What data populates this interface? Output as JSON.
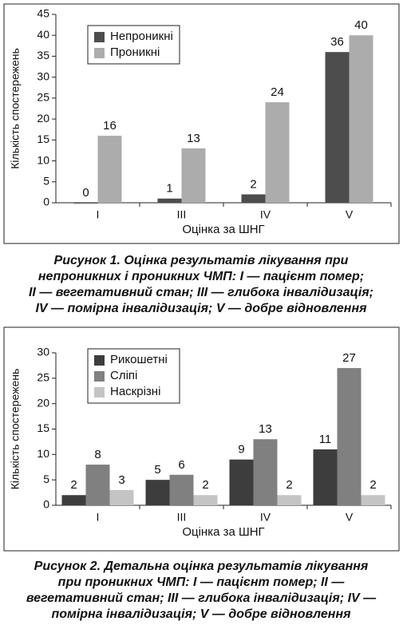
{
  "chart_data": [
    {
      "type": "bar",
      "ylabel": "Кількість спостережень",
      "xlabel": "Оцінка за ШНГ",
      "categories": [
        "I",
        "III",
        "IV",
        "V"
      ],
      "series": [
        {
          "name": "Непроникні",
          "color": "#4d4d4d",
          "values": [
            0,
            1,
            2,
            36
          ]
        },
        {
          "name": "Проникні",
          "color": "#acacac",
          "values": [
            16,
            13,
            24,
            40
          ]
        }
      ],
      "ylim": [
        0,
        45
      ],
      "yticks": [
        0,
        5,
        10,
        15,
        20,
        25,
        30,
        35,
        40,
        45
      ],
      "legend": "upper left",
      "caption": [
        "Рисунок 1.  Оцінка результатів лікування при",
        "непроникних і проникних ЧМП: I — пацієнт помер;",
        "II — вегетативний стан; III — глибока інвалідизація;",
        "IV — помірна інвалідизація; V — добре відновлення"
      ]
    },
    {
      "type": "bar",
      "ylabel": "Кількість спостережень",
      "xlabel": "Оцінка за ШНГ",
      "categories": [
        "I",
        "III",
        "IV",
        "V"
      ],
      "series": [
        {
          "name": "Рикошетні",
          "color": "#3d3d3d",
          "values": [
            2,
            5,
            9,
            11
          ]
        },
        {
          "name": "Сліпі",
          "color": "#808080",
          "values": [
            8,
            6,
            13,
            27
          ]
        },
        {
          "name": "Наскрізні",
          "color": "#c4c4c4",
          "values": [
            3,
            2,
            2,
            2
          ]
        }
      ],
      "ylim": [
        0,
        30
      ],
      "yticks": [
        0,
        5,
        10,
        15,
        20,
        25,
        30
      ],
      "legend": "upper left",
      "caption": [
        "Рисунок 2.  Детальна оцінка результатів лікування",
        "при проникних ЧМП: I — пацієнт помер; II —",
        "вегетативний стан; III — глибока інвалідизація; IV —",
        "помірна інвалідизація; V — добре відновлення"
      ]
    }
  ]
}
